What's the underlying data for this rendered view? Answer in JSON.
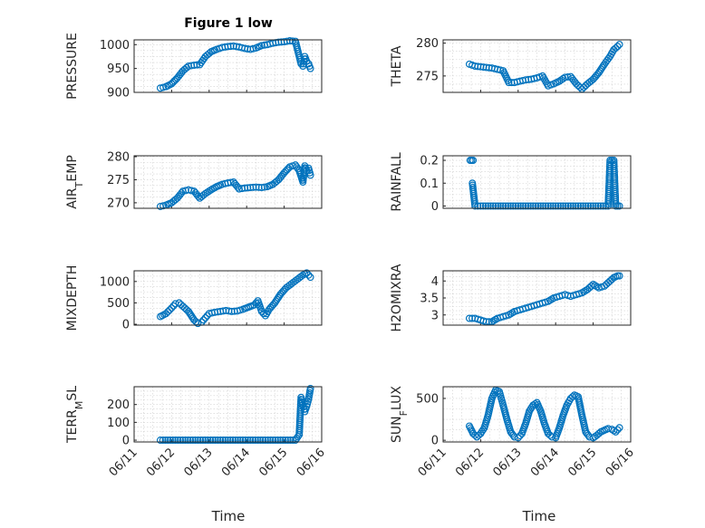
{
  "figure": {
    "title": "Figure 1 low"
  },
  "colors": {
    "marker": "#0072BD",
    "axis": "#262626",
    "grid": "#d0d0d0"
  },
  "x_axis": {
    "label": "Time",
    "tick_labels": [
      "06/11",
      "06/12",
      "06/13",
      "06/14",
      "06/15",
      "06/16"
    ]
  },
  "chart_data": [
    {
      "type": "scatter",
      "title": "Figure 1 low",
      "ylabel": "PRESSURE",
      "ylim": [
        900,
        1010
      ],
      "yticks": [
        900,
        950,
        1000
      ],
      "grid": true,
      "show_xticks": false,
      "x": [
        11.7,
        11.85,
        12.0,
        12.15,
        12.3,
        12.45,
        12.6,
        12.75,
        12.9,
        13.05,
        13.2,
        13.35,
        13.5,
        13.65,
        13.8,
        13.95,
        14.1,
        14.25,
        14.4,
        14.55,
        14.7,
        14.85,
        15.0,
        15.15,
        15.3,
        15.45,
        15.5,
        15.55,
        15.6,
        15.65,
        15.7
      ],
      "y": [
        909,
        912,
        918,
        930,
        945,
        955,
        957,
        958,
        975,
        985,
        990,
        994,
        996,
        997,
        995,
        992,
        990,
        993,
        998,
        1000,
        1003,
        1005,
        1006,
        1008,
        1007,
        960,
        955,
        975,
        965,
        960,
        950
      ]
    },
    {
      "type": "scatter",
      "ylabel": "THETA",
      "ylim": [
        272.5,
        280.5
      ],
      "yticks": [
        275,
        280
      ],
      "grid": true,
      "show_xticks": false,
      "x": [
        11.7,
        11.85,
        12.0,
        12.15,
        12.3,
        12.45,
        12.6,
        12.75,
        12.9,
        13.05,
        13.2,
        13.35,
        13.5,
        13.65,
        13.8,
        13.95,
        14.1,
        14.25,
        14.4,
        14.55,
        14.7,
        14.85,
        15.0,
        15.15,
        15.3,
        15.45,
        15.55,
        15.65,
        15.7
      ],
      "y": [
        276.8,
        276.5,
        276.4,
        276.3,
        276.2,
        276.0,
        275.8,
        274.0,
        274.0,
        274.2,
        274.4,
        274.5,
        274.7,
        275.0,
        273.5,
        273.8,
        274.2,
        274.8,
        274.9,
        273.8,
        273.0,
        273.8,
        274.5,
        275.5,
        276.8,
        278.0,
        279.0,
        279.5,
        279.8
      ]
    },
    {
      "type": "scatter",
      "ylabel": "AIR_TEMP",
      "ylim": [
        268.8,
        280.2
      ],
      "yticks": [
        270,
        275,
        280
      ],
      "grid": true,
      "show_xticks": false,
      "x": [
        11.7,
        11.85,
        12.0,
        12.15,
        12.3,
        12.45,
        12.6,
        12.75,
        12.9,
        13.05,
        13.2,
        13.35,
        13.5,
        13.65,
        13.8,
        13.95,
        14.1,
        14.25,
        14.4,
        14.55,
        14.7,
        14.85,
        15.0,
        15.15,
        15.3,
        15.4,
        15.5,
        15.55,
        15.6,
        15.65,
        15.7
      ],
      "y": [
        269.2,
        269.5,
        270.0,
        271.0,
        272.5,
        272.8,
        272.5,
        271.0,
        272.0,
        272.8,
        273.5,
        274.0,
        274.3,
        274.5,
        273.0,
        273.2,
        273.3,
        273.4,
        273.3,
        273.5,
        274.0,
        275.0,
        276.5,
        277.8,
        278.2,
        277.0,
        274.5,
        278.0,
        277.0,
        277.5,
        276.0
      ]
    },
    {
      "type": "scatter",
      "ylabel": "RAINFALL",
      "ylim": [
        -0.01,
        0.22
      ],
      "yticks": [
        0,
        0.1,
        0.2
      ],
      "grid": true,
      "show_xticks": false,
      "x": [
        11.72,
        11.76,
        11.8,
        11.78,
        11.85,
        12.0,
        12.2,
        12.4,
        12.6,
        12.8,
        13.0,
        13.2,
        13.4,
        13.6,
        13.8,
        14.0,
        14.2,
        14.4,
        14.6,
        14.8,
        15.0,
        15.2,
        15.4,
        15.45,
        15.5,
        15.55,
        15.6,
        15.65,
        15.7
      ],
      "y": [
        0.2,
        0.2,
        0.2,
        0.1,
        0,
        0,
        0,
        0,
        0,
        0,
        0,
        0,
        0,
        0,
        0,
        0,
        0,
        0,
        0,
        0,
        0,
        0,
        0,
        0.2,
        0.2,
        0.2,
        0,
        0,
        0
      ]
    },
    {
      "type": "scatter",
      "ylabel": "MIXDEPTH",
      "ylim": [
        -20,
        1250
      ],
      "yticks": [
        0,
        500,
        1000
      ],
      "grid": true,
      "show_xticks": false,
      "x": [
        11.7,
        11.85,
        12.0,
        12.1,
        12.2,
        12.3,
        12.45,
        12.6,
        12.7,
        12.8,
        12.9,
        13.0,
        13.15,
        13.3,
        13.45,
        13.6,
        13.75,
        13.9,
        14.05,
        14.2,
        14.3,
        14.4,
        14.5,
        14.6,
        14.75,
        14.9,
        15.05,
        15.2,
        15.35,
        15.5,
        15.6,
        15.7
      ],
      "y": [
        180,
        250,
        380,
        480,
        500,
        420,
        300,
        100,
        20,
        50,
        150,
        250,
        280,
        300,
        320,
        300,
        310,
        350,
        400,
        450,
        550,
        300,
        200,
        350,
        500,
        700,
        850,
        950,
        1050,
        1150,
        1200,
        1100
      ]
    },
    {
      "type": "scatter",
      "ylabel": "H2OMIXRA",
      "ylim": [
        2.7,
        4.3
      ],
      "yticks": [
        3,
        3.5,
        4
      ],
      "grid": true,
      "show_xticks": false,
      "x": [
        11.7,
        11.85,
        12.0,
        12.15,
        12.3,
        12.45,
        12.6,
        12.75,
        12.9,
        13.05,
        13.2,
        13.35,
        13.5,
        13.65,
        13.8,
        13.95,
        14.1,
        14.25,
        14.4,
        14.55,
        14.7,
        14.85,
        15.0,
        15.15,
        15.3,
        15.45,
        15.55,
        15.65,
        15.7
      ],
      "y": [
        2.9,
        2.9,
        2.85,
        2.8,
        2.8,
        2.9,
        2.95,
        3.0,
        3.1,
        3.15,
        3.2,
        3.25,
        3.3,
        3.35,
        3.4,
        3.5,
        3.55,
        3.6,
        3.55,
        3.6,
        3.65,
        3.75,
        3.9,
        3.8,
        3.85,
        4.0,
        4.1,
        4.15,
        4.15
      ]
    },
    {
      "type": "scatter",
      "ylabel": "TERR_MSL",
      "ylim": [
        -10,
        300
      ],
      "yticks": [
        0,
        100,
        200
      ],
      "grid": true,
      "show_xticks": true,
      "x": [
        11.7,
        11.9,
        12.1,
        12.3,
        12.5,
        12.7,
        12.9,
        13.1,
        13.3,
        13.5,
        13.7,
        13.9,
        14.1,
        14.3,
        14.5,
        14.7,
        14.9,
        15.1,
        15.3,
        15.4,
        15.45,
        15.5,
        15.55,
        15.6,
        15.65,
        15.7
      ],
      "y": [
        0,
        0,
        0,
        0,
        0,
        0,
        0,
        0,
        0,
        0,
        0,
        0,
        0,
        0,
        0,
        0,
        0,
        0,
        0,
        30,
        240,
        200,
        160,
        190,
        230,
        290
      ]
    },
    {
      "type": "scatter",
      "ylabel": "SUN_FLUX",
      "ylim": [
        -20,
        640
      ],
      "yticks": [
        0,
        500
      ],
      "grid": true,
      "show_xticks": true,
      "x": [
        11.7,
        11.8,
        11.9,
        12.0,
        12.1,
        12.2,
        12.3,
        12.4,
        12.5,
        12.6,
        12.7,
        12.8,
        12.9,
        13.0,
        13.1,
        13.2,
        13.3,
        13.4,
        13.5,
        13.6,
        13.7,
        13.8,
        13.9,
        14.0,
        14.1,
        14.2,
        14.3,
        14.4,
        14.5,
        14.6,
        14.7,
        14.8,
        14.9,
        15.0,
        15.1,
        15.2,
        15.3,
        15.4,
        15.5,
        15.6,
        15.7
      ],
      "y": [
        170,
        80,
        40,
        80,
        150,
        300,
        500,
        600,
        580,
        420,
        250,
        100,
        40,
        30,
        80,
        200,
        350,
        420,
        450,
        350,
        200,
        80,
        40,
        30,
        150,
        300,
        420,
        500,
        540,
        520,
        300,
        100,
        40,
        30,
        60,
        100,
        120,
        140,
        130,
        100,
        150
      ]
    }
  ]
}
